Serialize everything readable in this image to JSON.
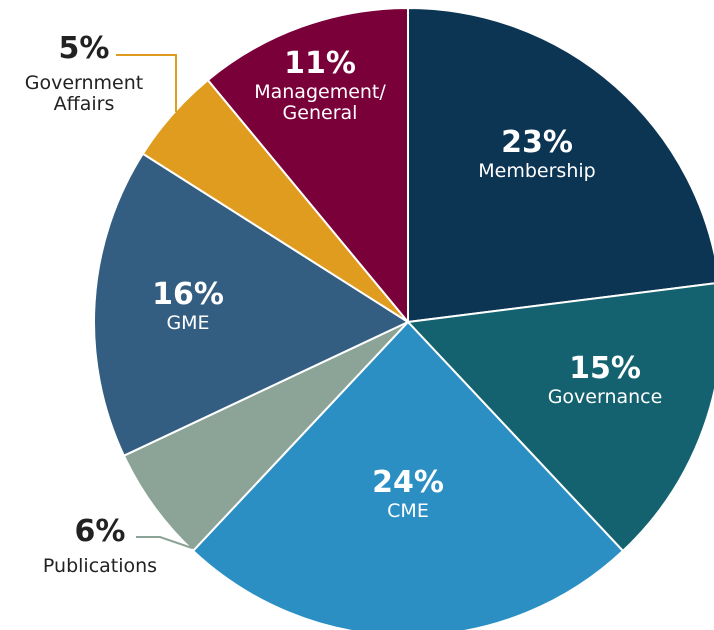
{
  "chart_data": {
    "type": "pie",
    "categories": [
      "Membership",
      "Governance",
      "CME",
      "Publications",
      "GME",
      "Government Affairs",
      "Management/ General"
    ],
    "values": [
      23,
      15,
      24,
      6,
      16,
      5,
      11
    ],
    "value_labels": [
      "23%",
      "15%",
      "24%",
      "6%",
      "16%",
      "5%",
      "11%"
    ],
    "colors": [
      "#0c3553",
      "#14626f",
      "#2b8fc4",
      "#8ca397",
      "#335e82",
      "#e09c1e",
      "#7a0039"
    ]
  }
}
